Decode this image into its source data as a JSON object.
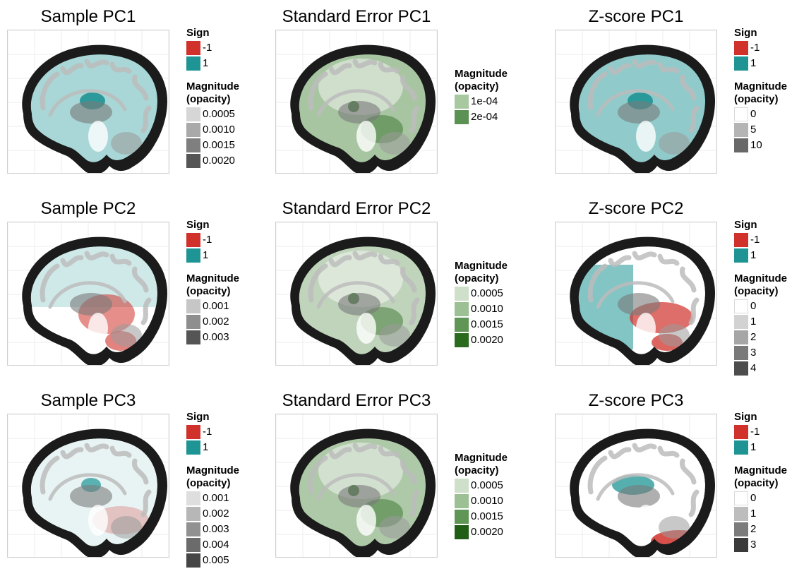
{
  "colors": {
    "neg": "#d0312a",
    "pos": "#1e9494",
    "brain_outer": "#1b1b1b",
    "gray_matter": "#bdbdbd",
    "white_matter": "#ffffff"
  },
  "panels": [
    {
      "id": "sample-pc1",
      "title": "Sample PC1",
      "type": "sample",
      "overlay": "pos",
      "overlay_intensity": 0.7,
      "neg_regions": 0,
      "legend": {
        "sign_title": "Sign",
        "sign_items": [
          {
            "label": "-1",
            "color": "#d0312a"
          },
          {
            "label": "1",
            "color": "#1e9494"
          }
        ],
        "magnitude_title": [
          "Magnitude",
          "(opacity)"
        ],
        "magnitude_items": [
          {
            "label": "0.0005",
            "color": "#d6d6d6"
          },
          {
            "label": "0.0010",
            "color": "#a9a9a9"
          },
          {
            "label": "0.0015",
            "color": "#7f7f7f"
          },
          {
            "label": "0.0020",
            "color": "#555555"
          }
        ]
      }
    },
    {
      "id": "se-pc1",
      "title": "Standard Error PC1",
      "type": "se",
      "overlay_intensity": 0.75,
      "legend": {
        "sign_title": "",
        "sign_items": [],
        "magnitude_title": [
          "Magnitude",
          "(opacity)"
        ],
        "magnitude_items": [
          {
            "label": "1e-04",
            "color": "#a8c8a0"
          },
          {
            "label": "2e-04",
            "color": "#5b9152"
          }
        ]
      }
    },
    {
      "id": "z-pc1",
      "title": "Z-score PC1",
      "type": "z",
      "overlay": "pos",
      "overlay_intensity": 0.9,
      "neg_regions": 0,
      "legend": {
        "sign_title": "Sign",
        "sign_items": [
          {
            "label": "-1",
            "color": "#d0312a"
          },
          {
            "label": "1",
            "color": "#1e9494"
          }
        ],
        "magnitude_title": [
          "Magnitude",
          "(opacity)"
        ],
        "magnitude_items": [
          {
            "label": "0",
            "color": "#ffffff"
          },
          {
            "label": "5",
            "color": "#b4b4b4"
          },
          {
            "label": "10",
            "color": "#686868"
          }
        ]
      }
    },
    {
      "id": "sample-pc2",
      "title": "Sample PC2",
      "type": "sample",
      "overlay": "mix",
      "overlay_intensity": 0.6,
      "neg_regions": 1,
      "legend": {
        "sign_title": "Sign",
        "sign_items": [
          {
            "label": "-1",
            "color": "#d0312a"
          },
          {
            "label": "1",
            "color": "#1e9494"
          }
        ],
        "magnitude_title": [
          "Magnitude",
          "(opacity)"
        ],
        "magnitude_items": [
          {
            "label": "0.001",
            "color": "#c6c6c6"
          },
          {
            "label": "0.002",
            "color": "#8e8e8e"
          },
          {
            "label": "0.003",
            "color": "#555555"
          }
        ]
      }
    },
    {
      "id": "se-pc2",
      "title": "Standard Error PC2",
      "type": "se",
      "overlay_intensity": 0.55,
      "legend": {
        "sign_title": "",
        "sign_items": [],
        "magnitude_title": [
          "Magnitude",
          "(opacity)"
        ],
        "magnitude_items": [
          {
            "label": "0.0005",
            "color": "#cfe0ca"
          },
          {
            "label": "0.0010",
            "color": "#9cc093"
          },
          {
            "label": "0.0015",
            "color": "#5f9656"
          },
          {
            "label": "0.0020",
            "color": "#2a6b1e"
          }
        ]
      }
    },
    {
      "id": "z-pc2",
      "title": "Z-score PC2",
      "type": "z",
      "overlay": "zmix",
      "overlay_intensity": 0.9,
      "neg_regions": 1,
      "legend": {
        "sign_title": "Sign",
        "sign_items": [
          {
            "label": "-1",
            "color": "#d0312a"
          },
          {
            "label": "1",
            "color": "#1e9494"
          }
        ],
        "magnitude_title": [
          "Magnitude",
          "(opacity)"
        ],
        "magnitude_items": [
          {
            "label": "0",
            "color": "#ffffff"
          },
          {
            "label": "1",
            "color": "#d2d2d2"
          },
          {
            "label": "2",
            "color": "#a6a6a6"
          },
          {
            "label": "3",
            "color": "#7a7a7a"
          },
          {
            "label": "4",
            "color": "#4d4d4d"
          }
        ]
      }
    },
    {
      "id": "sample-pc3",
      "title": "Sample PC3",
      "type": "sample",
      "overlay": "mix3",
      "overlay_intensity": 0.5,
      "neg_regions": 1,
      "legend": {
        "sign_title": "Sign",
        "sign_items": [
          {
            "label": "-1",
            "color": "#d0312a"
          },
          {
            "label": "1",
            "color": "#1e9494"
          }
        ],
        "magnitude_title": [
          "Magnitude",
          "(opacity)"
        ],
        "magnitude_items": [
          {
            "label": "0.001",
            "color": "#dedede"
          },
          {
            "label": "0.002",
            "color": "#b7b7b7"
          },
          {
            "label": "0.003",
            "color": "#919191"
          },
          {
            "label": "0.004",
            "color": "#6b6b6b"
          },
          {
            "label": "0.005",
            "color": "#454545"
          }
        ]
      }
    },
    {
      "id": "se-pc3",
      "title": "Standard Error PC3",
      "type": "se",
      "overlay_intensity": 0.7,
      "legend": {
        "sign_title": "",
        "sign_items": [],
        "magnitude_title": [
          "Magnitude",
          "(opacity)"
        ],
        "magnitude_items": [
          {
            "label": "0.0005",
            "color": "#cfe0ca"
          },
          {
            "label": "0.0010",
            "color": "#9cc093"
          },
          {
            "label": "0.0015",
            "color": "#5f9656"
          },
          {
            "label": "0.0020",
            "color": "#1f5e14"
          }
        ]
      }
    },
    {
      "id": "z-pc3",
      "title": "Z-score PC3",
      "type": "z",
      "overlay": "z3",
      "overlay_intensity": 0.9,
      "neg_regions": 1,
      "legend": {
        "sign_title": "Sign",
        "sign_items": [
          {
            "label": "-1",
            "color": "#d0312a"
          },
          {
            "label": "1",
            "color": "#1e9494"
          }
        ],
        "magnitude_title": [
          "Magnitude",
          "(opacity)"
        ],
        "magnitude_items": [
          {
            "label": "0",
            "color": "#ffffff"
          },
          {
            "label": "1",
            "color": "#bdbdbd"
          },
          {
            "label": "2",
            "color": "#7b7b7b"
          },
          {
            "label": "3",
            "color": "#3a3a3a"
          }
        ]
      }
    }
  ]
}
